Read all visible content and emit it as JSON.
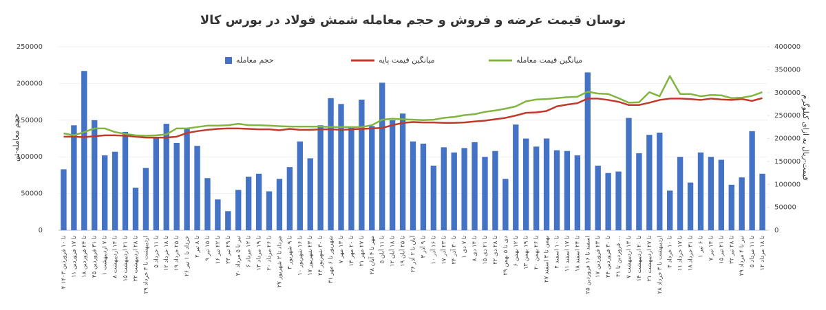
{
  "chart_data": {
    "type": "bar_line",
    "title": "نوسان قیمت عرضه و فروش و حجم معامله شمش فولاد در بورس کالا",
    "y_label": "حجم معامله-تن",
    "y2_label": "قیمت-ریال به ازای کیلوگرم",
    "categories": [
      "۴ تا ۱۰ فروردین ۱۴۰۳",
      "۱۱ تا ۱۷ فروردین",
      "۱۸ تا ۲۴ فروردین",
      "۲۵ تا ۳۱ فروردین",
      "۱ تا ۷ اردیبهشت",
      "۸ تا ۱۴ اردیبهشت",
      "۱۵ تا ۲۱ اردیبهشت",
      "۲۲ تا ۲۸ اردیبهشت",
      "۲۹ اردیبهشت تا ۴ خرداد",
      "۵ تا ۱۱ خرداد",
      "۱۲ تا ۱۸ خرداد",
      "۱۹ تا ۲۵ خرداد",
      "۲۶ خرداد تا ۱ تیر",
      "۲ تا ۸ تیر",
      "۹ تا ۱۵ تیر",
      "۱۶ تا ۲۲ تیر",
      "۲۳ تا ۲۹ تیر",
      "۳۰ تیر تا ۵ مرداد",
      "۶ تا ۱۲ مرداد",
      "۱۳ تا ۱۹ مرداد",
      "۲۰ تا ۲۶ مرداد",
      "۲۷ مرداد تا ۲ شهریور",
      "۳ تا ۹ شهریور",
      "۱۰ تا ۱۶ شهریور",
      "۱۷ تا ۲۳ شهریور",
      "۲۴ تا ۳۰ شهریور",
      "۳۱ شهریور تا ۶ مهر",
      "۷ تا ۱۳ مهر",
      "۱۴ تا ۲۰ مهر",
      "۲۱ تا ۲۷ مهر",
      "۲۸ مهر تا ۴ آبان",
      "۵ تا ۱۱ آبان",
      "۱۲ تا ۱۸ آبان",
      "۱۹ تا ۲۵ آبان",
      "۲۶ آبان تا ۲ آذر",
      "۳ تا ۹ آذر",
      "۱۰ تا ۱۶ آذر",
      "۱۷ تا ۲۳ آذر",
      "۲۴ تا ۳۰ آذر",
      "۱ تا ۷ دی",
      "۸ تا ۱۴ دی",
      "۱۵ تا ۲۱ دی",
      "۲۲ تا ۲۸ دی",
      "۲۹ دی تا ۵ بهمن",
      "۶ تا ۱۲ بهمن",
      "۱۳ تا ۱۹ بهمن",
      "۲۰ تا ۲۶ بهمن",
      "۲۷ بهمن تا ۳ اسفند",
      "۴ تا ۱۰ اسفند",
      "۱۱ تا ۱۷ اسفند",
      "۱۸ تا ۲۴ اسفند",
      "۲۵ اسفند تا ۱۶ فروردین",
      "۱۷ تا ۲۳ فروردین",
      "۲۴ تا ۳۰ فروردین",
      "۳۱ فروردین تا ...",
      "۷ تا ۱۳ اردیبهشت",
      "۱۴ تا ۲۰ اردیبهشت",
      "۲۱ تا ۲۷ اردیبهشت",
      "۲۸ اردیبهشت تا ۳ خرداد",
      "۴ تا ۱۰ خرداد",
      "۱۱ تا ۱۷ خرداد",
      "۱۸ تا ۳۱ خرداد",
      "۱ تا ۶ تیر",
      "۷ تا ۱۴ تیر",
      "۱۵ تا ۲۱ تیر",
      "۲۲ تا ۲۸ تیر",
      "۲۹ تیر تا ۴ مرداد",
      "۵ تا ۱۱ مرداد",
      "۱۲ تا ۱۸ مرداد"
    ],
    "series": [
      {
        "name": "حجم معامله",
        "type": "bar",
        "color": "#4472c4",
        "values": [
          83000,
          143000,
          217000,
          150000,
          102000,
          107000,
          134000,
          58000,
          85000,
          126000,
          145000,
          119000,
          138000,
          115000,
          71000,
          42000,
          26000,
          55000,
          73000,
          77000,
          53000,
          70000,
          86000,
          121000,
          98000,
          143000,
          180000,
          172000,
          140000,
          178000,
          142000,
          201000,
          150000,
          159000,
          121000,
          118000,
          88000,
          113000,
          106000,
          112000,
          120000,
          100000,
          108000,
          70000,
          144000,
          125000,
          114000,
          125000,
          109000,
          108000,
          102000,
          215000,
          88000,
          78000,
          80000,
          153000,
          105000,
          130000,
          133000,
          54000,
          100000,
          65000,
          106000,
          100000,
          96000,
          62000,
          72000,
          135000,
          77000
        ]
      },
      {
        "name": "میانگین قیمت پایه",
        "type": "line",
        "axis": "y2",
        "color": "#c0392b",
        "values": [
          204000,
          204000,
          203000,
          205000,
          207000,
          207000,
          206000,
          204000,
          202000,
          202000,
          202000,
          204000,
          212000,
          216000,
          219000,
          221000,
          222000,
          222000,
          221000,
          220000,
          220000,
          218000,
          221000,
          219000,
          219000,
          220000,
          220000,
          219000,
          220000,
          221000,
          222000,
          223000,
          229000,
          234000,
          236000,
          235000,
          235000,
          234000,
          234000,
          235000,
          237000,
          239000,
          242000,
          245000,
          250000,
          256000,
          257000,
          260000,
          270000,
          274000,
          277000,
          287000,
          287000,
          284000,
          280000,
          273000,
          273000,
          278000,
          284000,
          287000,
          287000,
          286000,
          284000,
          287000,
          285000,
          284000,
          286000,
          282000,
          288000
        ]
      },
      {
        "name": "میانگین قیمت معامله",
        "type": "line",
        "axis": "y2",
        "color": "#82b440",
        "values": [
          211000,
          207000,
          214000,
          222000,
          222000,
          214000,
          210000,
          207000,
          206000,
          207000,
          209000,
          222000,
          222000,
          225000,
          228000,
          228000,
          229000,
          232000,
          229000,
          229000,
          228000,
          227000,
          226000,
          226000,
          226000,
          226000,
          225000,
          225000,
          225000,
          225000,
          229000,
          241000,
          243000,
          242000,
          241000,
          240000,
          241000,
          245000,
          247000,
          251000,
          253000,
          258000,
          261000,
          265000,
          270000,
          281000,
          285000,
          286000,
          288000,
          290000,
          291000,
          302000,
          298000,
          297000,
          288000,
          278000,
          279000,
          301000,
          292000,
          336000,
          297000,
          297000,
          292000,
          295000,
          294000,
          288000,
          289000,
          293000,
          301000
        ]
      }
    ],
    "ylim": [
      0,
      250000
    ],
    "yticks": [
      0,
      50000,
      100000,
      150000,
      200000,
      250000
    ],
    "y2lim": [
      0,
      400000
    ],
    "y2ticks": [
      0,
      50000,
      100000,
      150000,
      200000,
      250000,
      300000,
      350000,
      400000
    ],
    "grid": true
  }
}
